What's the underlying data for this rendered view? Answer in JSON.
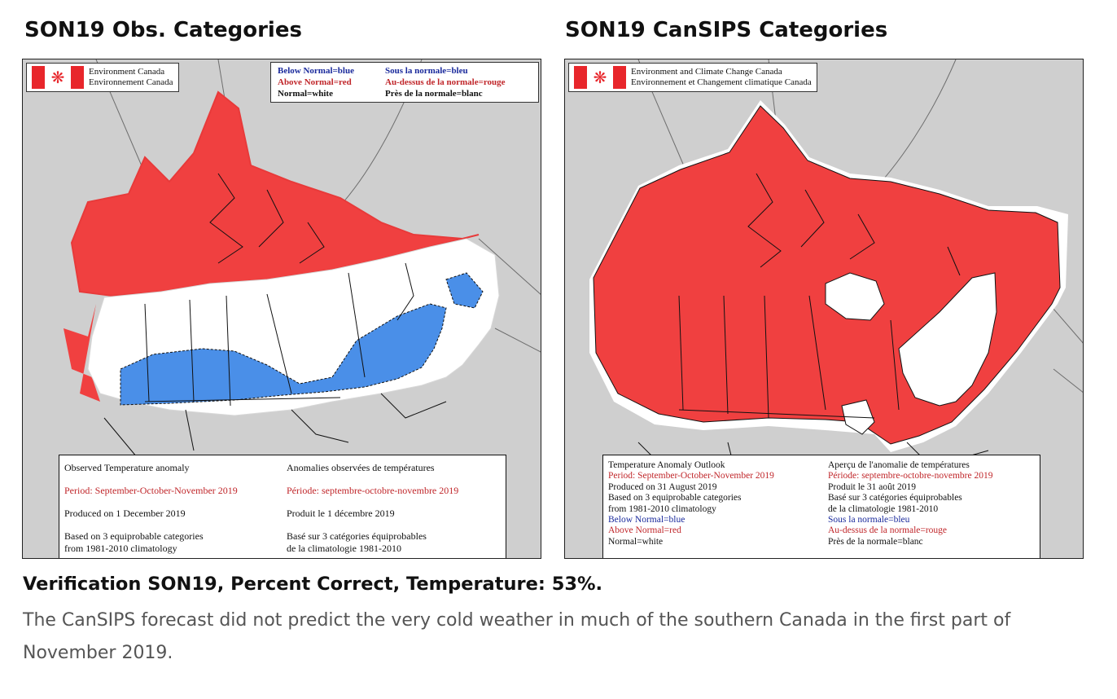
{
  "left": {
    "title": "SON19 Obs. Categories",
    "logo_line1": "Environment Canada",
    "logo_line2": "Environnement Canada",
    "legend": {
      "en_below": "Below Normal=blue",
      "fr_below": "Sous la normale=bleu",
      "en_above": "Above Normal=red",
      "fr_above": "Au-dessus de la normale=rouge",
      "en_normal": "Normal=white",
      "fr_normal": "Près de la normale=blanc"
    },
    "info": {
      "en_title": "Observed Temperature anomaly",
      "fr_title": "Anomalies observées de températures",
      "en_period": "Period:  September-October-November 2019",
      "fr_period": "Période:  septembre-octobre-novembre 2019",
      "en_produced": "Produced on 1 December 2019",
      "fr_produced": "Produit le 1 décembre 2019",
      "en_based1": "Based on 3 equiprobable categories",
      "en_based2": "from 1981-2010 climatology",
      "fr_based1": "Basé sur 3 catégories équiprobables",
      "fr_based2": "de la climatologie 1981-2010"
    }
  },
  "right": {
    "title": "SON19 CanSIPS Categories",
    "logo_line1": "Environment and Climate Change Canada",
    "logo_line2": "Environnement et Changement climatique Canada",
    "info": {
      "en_title": "Temperature Anomaly Outlook",
      "fr_title": "Aperçu de l'anomalie de températures",
      "en_period": "Period: September-October-November 2019",
      "fr_period": "Période: septembre-octobre-novembre 2019",
      "en_produced": "Produced on 31 August 2019",
      "fr_produced": "Produit le 31 août 2019",
      "en_based1": "Based on 3 equiprobable categories",
      "en_based2": "from 1981-2010 climatology",
      "fr_based1": "Basé sur 3 catégories équiprobables",
      "fr_based2": "de la climatologie 1981-2010",
      "en_below": "Below Normal=blue",
      "fr_below": "Sous la normale=bleu",
      "en_above": "Above Normal=red",
      "fr_above": "Au-dessus de la normale=rouge",
      "en_normal": "Normal=white",
      "fr_normal": "Près de la normale=blanc"
    }
  },
  "verification": "Verification SON19, Percent Correct, Temperature: 53%.",
  "caption": "The CanSIPS forecast did not predict the very cold weather in much of the southern Canada in the first part of November 2019.",
  "colors": {
    "above_normal": "#f04040",
    "below_normal": "#4a8fe8",
    "normal": "#ffffff",
    "background": "#cfcfcf"
  },
  "icons": [
    "canada-flag-icon"
  ]
}
